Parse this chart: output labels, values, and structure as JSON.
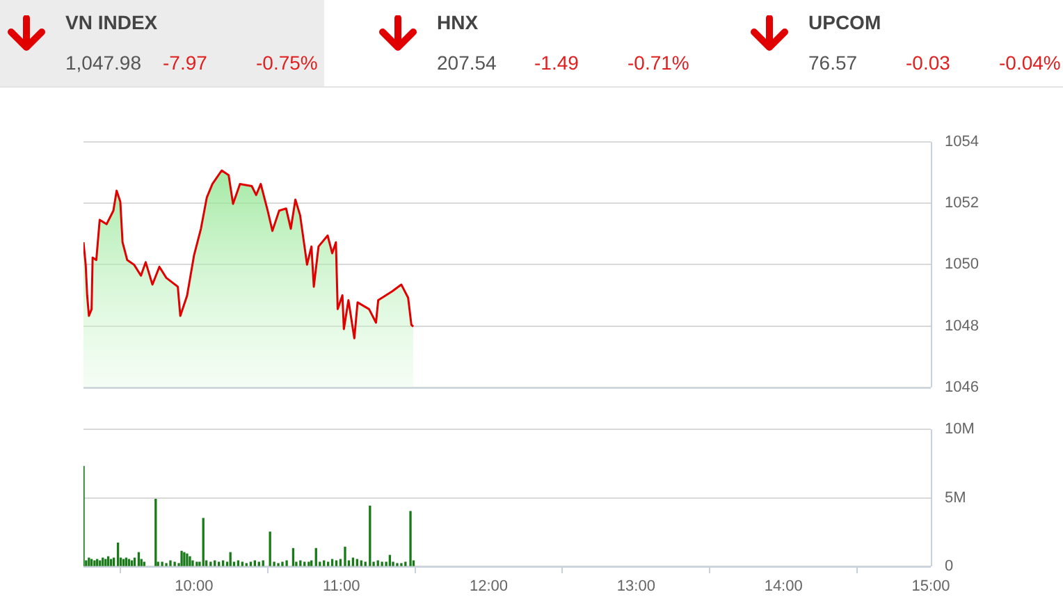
{
  "chart_data": [
    {
      "type": "other",
      "annotations": [
        "VN INDEX",
        "1,047.98",
        "-7.97",
        "-0.75%",
        "HNX",
        "207.54",
        "-1.49",
        "-0.71%",
        "UPCOM",
        "76.57",
        "-0.03",
        "-0.04%"
      ]
    },
    {
      "type": "area",
      "x": [
        9.25,
        9.265,
        9.275,
        9.287,
        9.305,
        9.312,
        9.337,
        9.36,
        9.407,
        9.453,
        9.475,
        9.5,
        9.515,
        9.547,
        9.593,
        9.64,
        9.672,
        9.718,
        9.765,
        9.812,
        9.89,
        9.907,
        9.953,
        10.0,
        10.047,
        10.087,
        10.125,
        10.188,
        10.235,
        10.265,
        10.312,
        10.392,
        10.422,
        10.453,
        10.5,
        10.532,
        10.578,
        10.625,
        10.657,
        10.688,
        10.72,
        10.75,
        10.767,
        10.797,
        10.813,
        10.845,
        10.907,
        10.938,
        10.963,
        10.975,
        11.007,
        11.017,
        11.048,
        11.088,
        11.11,
        11.188,
        11.235,
        11.25,
        11.345,
        11.407,
        11.453,
        11.475,
        11.488
      ],
      "series": [
        {
          "color": "#e00000",
          "values": [
            1050.73,
            1050.0,
            1049.0,
            1048.33,
            1048.55,
            1050.23,
            1050.15,
            1051.46,
            1051.32,
            1051.76,
            1052.41,
            1052.05,
            1050.73,
            1050.15,
            1050.0,
            1049.64,
            1050.08,
            1049.35,
            1049.93,
            1049.57,
            1049.28,
            1048.33,
            1048.99,
            1050.3,
            1051.17,
            1052.19,
            1052.63,
            1053.07,
            1052.92,
            1051.98,
            1052.63,
            1052.56,
            1052.27,
            1052.63,
            1051.76,
            1051.1,
            1051.76,
            1051.83,
            1051.17,
            1052.12,
            1051.61,
            1050.59,
            1050.0,
            1050.59,
            1049.28,
            1050.59,
            1050.95,
            1050.37,
            1050.73,
            1048.55,
            1049.0,
            1047.9,
            1048.84,
            1047.6,
            1048.77,
            1048.55,
            1048.11,
            1048.84,
            1049.13,
            1049.35,
            1048.92,
            1048.04,
            1047.98
          ]
        }
      ],
      "xlim": [
        9.25,
        15
      ],
      "ylim": [
        1046,
        1054
      ],
      "yticks": [
        1046,
        1048,
        1050,
        1052,
        1054
      ],
      "grid": "y",
      "tick_labels": "y",
      "legend": false
    },
    {
      "type": "bar",
      "x": [
        9.25,
        9.268,
        9.287,
        9.305,
        9.325,
        9.343,
        9.362,
        9.381,
        9.4,
        9.418,
        9.437,
        9.456,
        9.484,
        9.503,
        9.522,
        9.54,
        9.559,
        9.578,
        9.597,
        9.625,
        9.643,
        9.662,
        9.74,
        9.756,
        9.784,
        9.812,
        9.84,
        9.869,
        9.897,
        9.916,
        9.934,
        9.953,
        9.972,
        9.991,
        10.019,
        10.038,
        10.063,
        10.084,
        10.113,
        10.141,
        10.169,
        10.197,
        10.225,
        10.247,
        10.272,
        10.3,
        10.328,
        10.356,
        10.385,
        10.413,
        10.441,
        10.469,
        10.516,
        10.544,
        10.572,
        10.6,
        10.629,
        10.673,
        10.694,
        10.722,
        10.75,
        10.779,
        10.797,
        10.828,
        10.854,
        10.882,
        10.91,
        10.938,
        10.966,
        10.994,
        11.025,
        11.051,
        11.079,
        11.107,
        11.135,
        11.163,
        11.194,
        11.219,
        11.248,
        11.276,
        11.304,
        11.329,
        11.351,
        11.379,
        11.407,
        11.435,
        11.469,
        11.49
      ],
      "series": [
        {
          "color": "#1a7a1a",
          "values": [
            7.3,
            0.4,
            0.6,
            0.5,
            0.4,
            0.5,
            0.4,
            0.6,
            0.5,
            0.7,
            0.5,
            0.6,
            1.7,
            0.6,
            0.5,
            0.6,
            0.5,
            0.4,
            0.6,
            1.0,
            0.5,
            0.3,
            4.9,
            0.3,
            0.3,
            0.2,
            0.4,
            0.3,
            0.2,
            1.1,
            1.0,
            0.9,
            0.7,
            0.4,
            0.3,
            0.3,
            3.5,
            0.4,
            0.3,
            0.4,
            0.3,
            0.4,
            0.3,
            1.0,
            0.3,
            0.4,
            0.3,
            0.2,
            0.3,
            0.4,
            0.3,
            0.4,
            2.5,
            0.3,
            0.2,
            0.3,
            0.4,
            1.3,
            0.3,
            0.4,
            0.3,
            0.3,
            0.4,
            1.3,
            0.3,
            0.4,
            0.3,
            0.5,
            0.4,
            0.5,
            1.4,
            0.4,
            0.6,
            0.5,
            0.4,
            0.3,
            4.4,
            0.3,
            0.4,
            0.3,
            0.3,
            0.8,
            0.3,
            0.2,
            0.2,
            0.3,
            4.0,
            0.4
          ]
        }
      ],
      "xlim": [
        9.25,
        15
      ],
      "xticks": [
        {
          "value": 10,
          "label": "10:00"
        },
        {
          "value": 11,
          "label": "11:00"
        },
        {
          "value": 12,
          "label": "12:00"
        },
        {
          "value": 13,
          "label": "13:00"
        },
        {
          "value": 14,
          "label": "14:00"
        },
        {
          "value": 15,
          "label": "15:00"
        }
      ],
      "ylim": [
        0,
        10
      ],
      "yticks": [
        0,
        {
          "value": 5,
          "label": "5M"
        },
        {
          "value": 10,
          "label": "10M"
        }
      ],
      "grid": "y",
      "legend": false
    }
  ]
}
